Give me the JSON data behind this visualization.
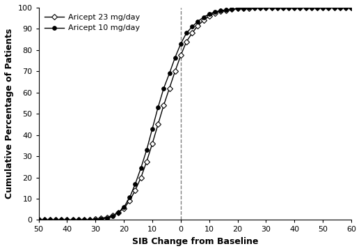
{
  "title": "",
  "xlabel": "SIB Change from Baseline",
  "ylabel": "Cumulative Percentage of Patients",
  "xlim": [
    50,
    -60
  ],
  "ylim": [
    0,
    100
  ],
  "xticks": [
    50,
    40,
    30,
    20,
    10,
    0,
    -10,
    -20,
    -30,
    -40,
    -50,
    -60
  ],
  "yticks": [
    0,
    10,
    20,
    30,
    40,
    50,
    60,
    70,
    80,
    90,
    100
  ],
  "vline_x": 0,
  "legend_labels": [
    "Aricept 23 mg/day",
    "Aricept 10 mg/day"
  ],
  "line1_color": "#000000",
  "line2_color": "#000000",
  "background_color": "#ffffff",
  "curve23_x": [
    50,
    48,
    46,
    44,
    42,
    40,
    38,
    36,
    34,
    32,
    30,
    28,
    26,
    24,
    22,
    20,
    18,
    16,
    14,
    12,
    10,
    8,
    6,
    4,
    2,
    0,
    -2,
    -4,
    -6,
    -8,
    -10,
    -12,
    -14,
    -16,
    -18,
    -20,
    -22,
    -24,
    -26,
    -28,
    -30,
    -32,
    -34,
    -36,
    -38,
    -40,
    -42,
    -44,
    -46,
    -48,
    -50,
    -52,
    -54,
    -56,
    -58,
    -60
  ],
  "curve23_y": [
    0,
    0,
    0,
    0,
    0,
    0,
    0,
    0,
    0,
    0,
    0.4,
    0.8,
    1.3,
    2.0,
    3.5,
    5.5,
    9.0,
    14.0,
    20.0,
    27.5,
    36.0,
    45.0,
    54.0,
    62.0,
    70.0,
    77.5,
    84.0,
    88.0,
    91.5,
    94.0,
    96.0,
    97.5,
    98.3,
    98.8,
    99.2,
    99.5,
    99.7,
    99.8,
    99.9,
    99.95,
    100,
    100,
    100,
    100,
    100,
    100,
    100,
    100,
    100,
    100,
    100,
    100,
    100,
    100,
    100,
    100
  ],
  "curve10_x": [
    50,
    48,
    46,
    44,
    42,
    40,
    38,
    36,
    34,
    32,
    30,
    28,
    26,
    24,
    22,
    20,
    18,
    16,
    14,
    12,
    10,
    8,
    6,
    4,
    2,
    0,
    -2,
    -4,
    -6,
    -8,
    -10,
    -12,
    -14,
    -16,
    -18,
    -20,
    -22,
    -24,
    -26,
    -28,
    -30,
    -32,
    -34,
    -36,
    -38,
    -40,
    -42,
    -44,
    -46,
    -48,
    -50,
    -52,
    -54,
    -56,
    -58,
    -60
  ],
  "curve10_y": [
    0,
    0,
    0,
    0,
    0,
    0,
    0,
    0,
    0,
    0,
    0,
    0.4,
    0.8,
    1.8,
    3.5,
    6.0,
    10.5,
    17.0,
    24.5,
    33.0,
    43.0,
    53.0,
    62.0,
    69.0,
    76.5,
    83.0,
    88.0,
    91.0,
    93.5,
    95.5,
    97.0,
    98.0,
    98.6,
    99.0,
    99.3,
    99.6,
    99.75,
    99.85,
    99.9,
    99.95,
    100,
    100,
    100,
    100,
    100,
    100,
    100,
    100,
    100,
    100,
    100,
    100,
    100,
    100,
    100,
    100
  ]
}
